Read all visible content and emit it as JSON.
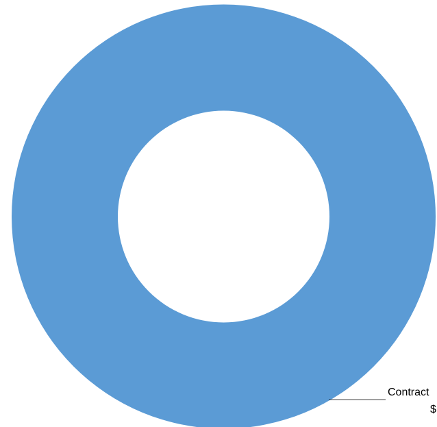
{
  "chart_data": {
    "type": "donut",
    "categories": [
      "Contract"
    ],
    "values": [
      100
    ],
    "value_labels": [
      "$"
    ],
    "colors": [
      "#5b9bd5"
    ]
  }
}
